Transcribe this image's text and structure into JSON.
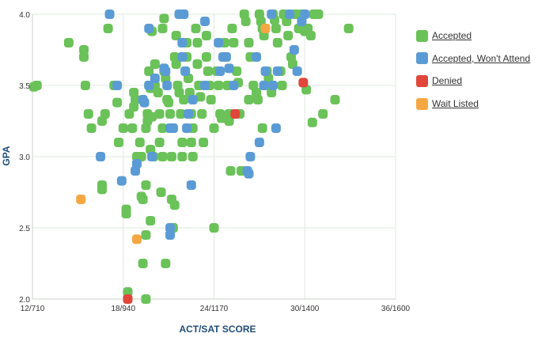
{
  "chart_data": {
    "type": "scatter",
    "xlabel": "ACT/SAT SCORE",
    "ylabel": "GPA",
    "xlim": [
      12,
      36
    ],
    "ylim": [
      2.0,
      4.0
    ],
    "x_ticks": [
      {
        "value": 12,
        "label": "12/710"
      },
      {
        "value": 18,
        "label": "18/940"
      },
      {
        "value": 24,
        "label": "24/1170"
      },
      {
        "value": 30,
        "label": "30/1400"
      },
      {
        "value": 36,
        "label": "36/1600"
      }
    ],
    "y_ticks": [
      {
        "value": 2.0,
        "label": "2.0"
      },
      {
        "value": 2.5,
        "label": "2.5"
      },
      {
        "value": 3.0,
        "label": "3.0"
      },
      {
        "value": 3.5,
        "label": "3.5"
      },
      {
        "value": 4.0,
        "label": "4.0"
      }
    ],
    "grid": true,
    "legend_position": "right",
    "series": [
      {
        "name": "Accepted",
        "color": "#6ac259",
        "points": [
          [
            12.1,
            3.49
          ],
          [
            12.3,
            3.5
          ],
          [
            14.4,
            3.8
          ],
          [
            15.4,
            3.75
          ],
          [
            15.4,
            3.7
          ],
          [
            15.5,
            3.5
          ],
          [
            15.7,
            3.3
          ],
          [
            15.9,
            3.2
          ],
          [
            16.8,
            3.3
          ],
          [
            16.6,
            3.25
          ],
          [
            16.6,
            2.8
          ],
          [
            16.6,
            2.77
          ],
          [
            17.0,
            3.9
          ],
          [
            17.4,
            3.5
          ],
          [
            17.6,
            3.38
          ],
          [
            17.7,
            3.1
          ],
          [
            18.0,
            3.2
          ],
          [
            18.2,
            2.63
          ],
          [
            18.2,
            2.6
          ],
          [
            18.4,
            3.3
          ],
          [
            18.7,
            3.45
          ],
          [
            18.8,
            3.4
          ],
          [
            18.7,
            3.35
          ],
          [
            18.6,
            3.2
          ],
          [
            18.9,
            3.0
          ],
          [
            19.0,
            3.0
          ],
          [
            19.1,
            3.1
          ],
          [
            19.2,
            3.0
          ],
          [
            19.2,
            2.72
          ],
          [
            19.3,
            2.7
          ],
          [
            19.5,
            2.8
          ],
          [
            19.6,
            3.3
          ],
          [
            19.6,
            3.25
          ],
          [
            19.5,
            3.2
          ],
          [
            19.7,
            3.5
          ],
          [
            19.8,
            3.48
          ],
          [
            19.7,
            3.6
          ],
          [
            19.9,
            3.88
          ],
          [
            19.9,
            3.28
          ],
          [
            19.8,
            3.05
          ],
          [
            20.0,
            3.0
          ],
          [
            20.1,
            3.65
          ],
          [
            20.1,
            3.5
          ],
          [
            20.3,
            3.45
          ],
          [
            20.4,
            3.3
          ],
          [
            20.6,
            3.2
          ],
          [
            20.4,
            3.1
          ],
          [
            20.6,
            3.0
          ],
          [
            20.5,
            2.75
          ],
          [
            20.7,
            3.97
          ],
          [
            20.6,
            3.9
          ],
          [
            20.7,
            3.6
          ],
          [
            20.8,
            3.55
          ],
          [
            20.9,
            3.4
          ],
          [
            21.0,
            3.38
          ],
          [
            21.1,
            3.3
          ],
          [
            21.3,
            3.2
          ],
          [
            21.2,
            3.0
          ],
          [
            21.2,
            2.7
          ],
          [
            21.4,
            2.66
          ],
          [
            21.5,
            3.85
          ],
          [
            21.4,
            3.7
          ],
          [
            21.5,
            3.65
          ],
          [
            21.6,
            3.5
          ],
          [
            21.7,
            3.45
          ],
          [
            21.8,
            3.3
          ],
          [
            21.9,
            3.1
          ],
          [
            21.9,
            3.0
          ],
          [
            22.0,
            3.4
          ],
          [
            22.1,
            3.6
          ],
          [
            22.2,
            3.8
          ],
          [
            22.2,
            3.7
          ],
          [
            22.3,
            3.55
          ],
          [
            22.4,
            3.45
          ],
          [
            22.5,
            3.3
          ],
          [
            22.6,
            3.2
          ],
          [
            22.5,
            3.1
          ],
          [
            22.6,
            3.0
          ],
          [
            22.8,
            3.9
          ],
          [
            22.9,
            3.8
          ],
          [
            22.9,
            3.65
          ],
          [
            23.0,
            3.5
          ],
          [
            23.1,
            3.42
          ],
          [
            23.2,
            3.3
          ],
          [
            23.3,
            3.1
          ],
          [
            23.5,
            3.85
          ],
          [
            23.5,
            3.7
          ],
          [
            23.6,
            3.6
          ],
          [
            23.7,
            3.5
          ],
          [
            23.8,
            3.4
          ],
          [
            24.0,
            3.2
          ],
          [
            24.2,
            3.6
          ],
          [
            24.3,
            3.5
          ],
          [
            24.4,
            3.3
          ],
          [
            24.5,
            3.27
          ],
          [
            24.7,
            3.8
          ],
          [
            24.8,
            3.7
          ],
          [
            24.9,
            3.5
          ],
          [
            25.0,
            3.25
          ],
          [
            25.0,
            3.3
          ],
          [
            25.2,
            3.9
          ],
          [
            25.3,
            3.8
          ],
          [
            25.5,
            3.6
          ],
          [
            25.6,
            3.52
          ],
          [
            25.7,
            3.3
          ],
          [
            26.0,
            4.0
          ],
          [
            26.1,
            3.95
          ],
          [
            26.3,
            3.8
          ],
          [
            26.4,
            3.7
          ],
          [
            26.6,
            3.5
          ],
          [
            26.8,
            3.45
          ],
          [
            26.9,
            3.4
          ],
          [
            27.0,
            4.0
          ],
          [
            27.1,
            3.95
          ],
          [
            27.2,
            3.9
          ],
          [
            27.3,
            3.85
          ],
          [
            27.5,
            3.6
          ],
          [
            27.6,
            3.55
          ],
          [
            27.7,
            3.5
          ],
          [
            27.8,
            3.45
          ],
          [
            27.9,
            4.0
          ],
          [
            28.0,
            3.96
          ],
          [
            28.1,
            3.9
          ],
          [
            28.2,
            3.8
          ],
          [
            28.4,
            3.6
          ],
          [
            28.5,
            3.5
          ],
          [
            28.6,
            4.0
          ],
          [
            28.8,
            3.95
          ],
          [
            28.9,
            3.85
          ],
          [
            29.1,
            3.7
          ],
          [
            29.2,
            3.65
          ],
          [
            29.4,
            4.0
          ],
          [
            29.6,
            3.9
          ],
          [
            29.8,
            4.0
          ],
          [
            30.0,
            3.88
          ],
          [
            30.2,
            3.9
          ],
          [
            30.4,
            3.85
          ],
          [
            30.6,
            4.0
          ],
          [
            30.9,
            4.0
          ],
          [
            31.2,
            3.3
          ],
          [
            32.0,
            3.4
          ],
          [
            32.9,
            3.9
          ],
          [
            30.1,
            3.47
          ],
          [
            30.5,
            3.24
          ],
          [
            27.2,
            3.2
          ],
          [
            26.3,
            3.4
          ],
          [
            25.1,
            2.9
          ],
          [
            24.0,
            2.5
          ],
          [
            21.3,
            2.5
          ],
          [
            19.5,
            2.0
          ],
          [
            19.3,
            2.25
          ],
          [
            19.5,
            2.45
          ],
          [
            18.3,
            2.05
          ],
          [
            20.8,
            2.25
          ],
          [
            19.8,
            2.55
          ],
          [
            25.8,
            2.9
          ]
        ]
      },
      {
        "name": "Accepted, Won't Attend",
        "color": "#5b9bd5",
        "points": [
          [
            17.1,
            4.0
          ],
          [
            17.6,
            3.5
          ],
          [
            16.5,
            3.0
          ],
          [
            17.9,
            2.83
          ],
          [
            18.8,
            2.9
          ],
          [
            18.9,
            2.95
          ],
          [
            19.3,
            3.4
          ],
          [
            19.4,
            3.38
          ],
          [
            19.7,
            3.9
          ],
          [
            19.7,
            3.5
          ],
          [
            20.1,
            3.55
          ],
          [
            19.9,
            3.0
          ],
          [
            20.7,
            3.62
          ],
          [
            20.8,
            3.6
          ],
          [
            20.9,
            3.5
          ],
          [
            21.1,
            3.2
          ],
          [
            21.3,
            3.2
          ],
          [
            21.1,
            2.5
          ],
          [
            21.1,
            2.45
          ],
          [
            21.7,
            4.0
          ],
          [
            22.0,
            4.0
          ],
          [
            21.9,
            3.8
          ],
          [
            21.9,
            3.7
          ],
          [
            22.1,
            3.6
          ],
          [
            22.3,
            3.3
          ],
          [
            22.2,
            3.2
          ],
          [
            22.6,
            3.4
          ],
          [
            22.5,
            2.8
          ],
          [
            23.4,
            3.95
          ],
          [
            23.4,
            3.5
          ],
          [
            24.3,
            3.8
          ],
          [
            24.4,
            3.6
          ],
          [
            24.6,
            3.7
          ],
          [
            24.8,
            3.7
          ],
          [
            25.0,
            3.62
          ],
          [
            25.3,
            3.5
          ],
          [
            26.2,
            2.9
          ],
          [
            26.3,
            2.88
          ],
          [
            26.4,
            3.0
          ],
          [
            26.8,
            3.7
          ],
          [
            27.0,
            3.1
          ],
          [
            27.4,
            3.6
          ],
          [
            27.8,
            4.0
          ],
          [
            27.9,
            3.5
          ],
          [
            28.1,
            3.2
          ],
          [
            28.2,
            3.6
          ],
          [
            29.0,
            4.0
          ],
          [
            29.3,
            3.75
          ],
          [
            29.5,
            3.6
          ],
          [
            29.8,
            3.95
          ],
          [
            30.0,
            4.0
          ],
          [
            27.3,
            3.5
          ]
        ]
      },
      {
        "name": "Denied",
        "color": "#e0463a",
        "points": [
          [
            18.3,
            2.0
          ],
          [
            25.4,
            3.3
          ],
          [
            29.9,
            3.52
          ]
        ]
      },
      {
        "name": "Wait Listed",
        "color": "#f5a742",
        "points": [
          [
            15.2,
            2.7
          ],
          [
            18.9,
            2.42
          ],
          [
            27.4,
            3.9
          ]
        ]
      }
    ]
  }
}
